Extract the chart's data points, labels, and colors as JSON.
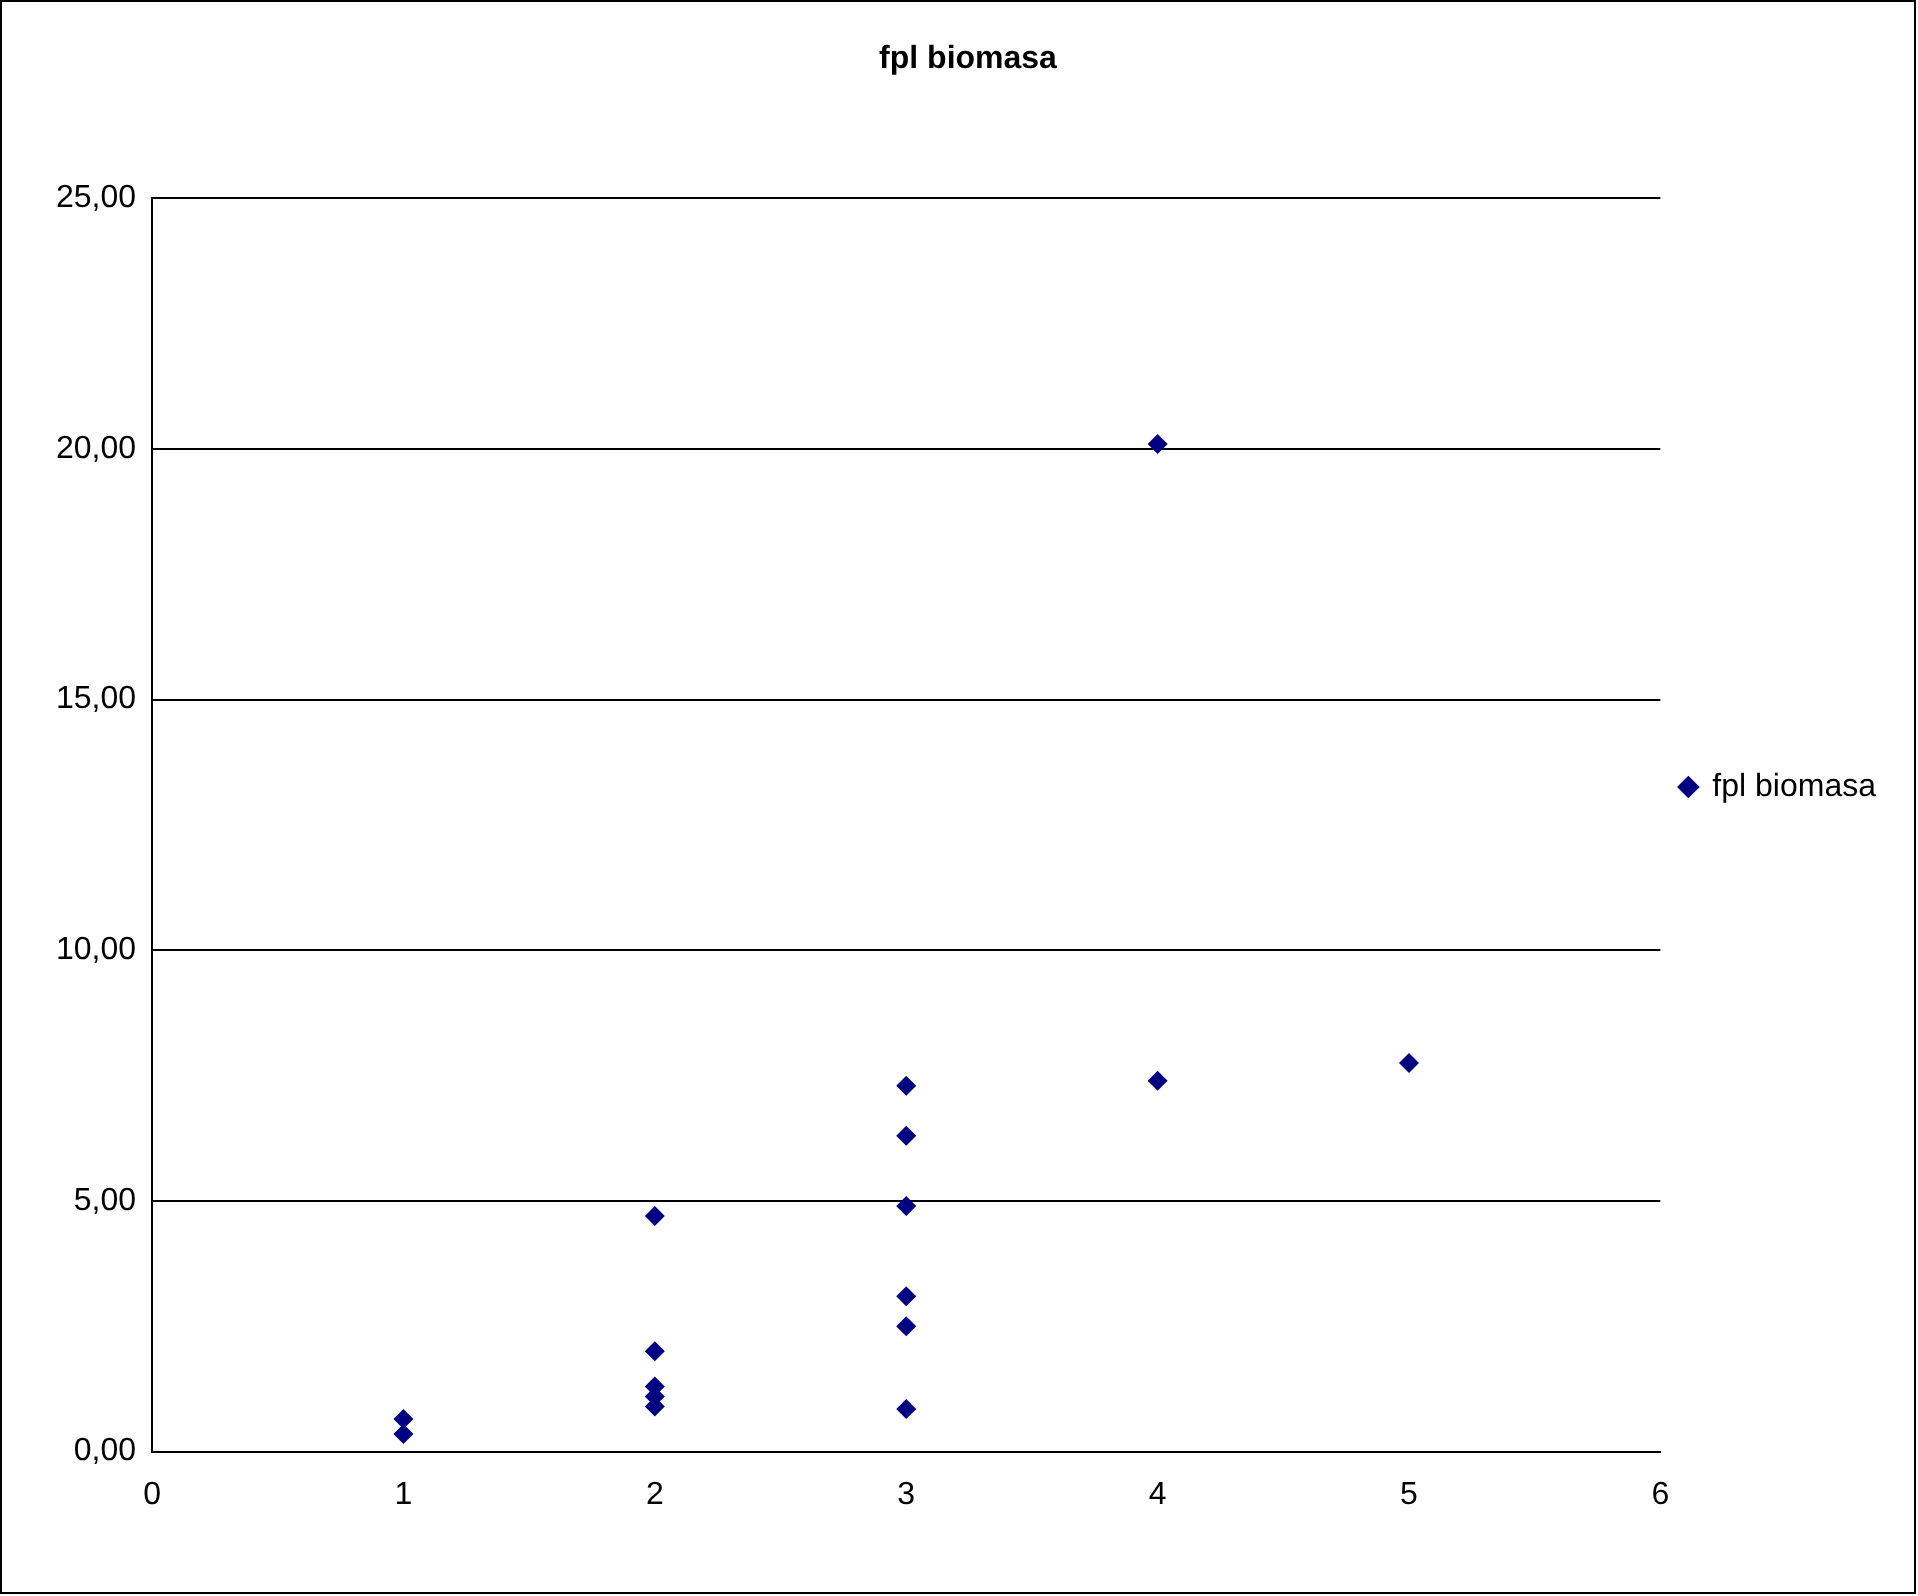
{
  "chart_data": {
    "type": "scatter",
    "title": "fpl biomasa",
    "x": [
      1,
      1,
      2,
      2,
      2,
      2,
      2,
      3,
      3,
      3,
      3,
      3,
      3,
      4,
      4,
      5
    ],
    "series": [
      {
        "name": "fpl biomasa",
        "color": "#000080",
        "values": [
          0.65,
          0.35,
          4.7,
          2.0,
          1.3,
          1.1,
          0.9,
          7.3,
          6.3,
          4.9,
          3.1,
          2.5,
          0.85,
          20.1,
          7.4,
          7.75
        ]
      }
    ],
    "xlim": [
      0,
      6
    ],
    "xticks": [
      0,
      1,
      2,
      3,
      4,
      5,
      6
    ],
    "ylim": [
      0,
      25
    ],
    "yticks": [
      {
        "value": 0,
        "label": "0,00"
      },
      {
        "value": 5,
        "label": "5,00"
      },
      {
        "value": 10,
        "label": "10,00"
      },
      {
        "value": 15,
        "label": "15,00"
      },
      {
        "value": 20,
        "label": "20,00"
      },
      {
        "value": 25,
        "label": "25,00"
      }
    ],
    "grid": "y",
    "legend": "right",
    "marker": "diamond"
  }
}
